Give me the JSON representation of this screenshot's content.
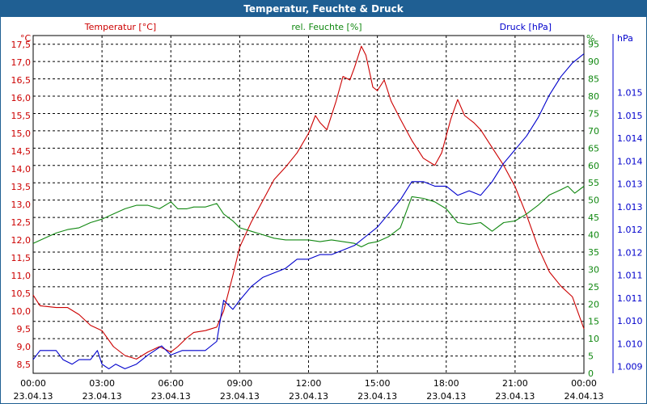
{
  "window": {
    "title": "Temperatur, Feuchte & Druck"
  },
  "colors": {
    "temperature": "#cc0000",
    "humidity": "#118811",
    "pressure": "#0000cc",
    "grid": "#000000",
    "titlebar": "#1f5f93"
  },
  "chart_data": {
    "type": "line",
    "title": "Temperatur, Feuchte & Druck",
    "x_hours": [
      0,
      24
    ],
    "x_ticks": [
      {
        "time": "00:00",
        "date": "23.04.13"
      },
      {
        "time": "03:00",
        "date": "23.04.13"
      },
      {
        "time": "06:00",
        "date": "23.04.13"
      },
      {
        "time": "09:00",
        "date": "23.04.13"
      },
      {
        "time": "12:00",
        "date": "23.04.13"
      },
      {
        "time": "15:00",
        "date": "23.04.13"
      },
      {
        "time": "18:00",
        "date": "23.04.13"
      },
      {
        "time": "21:00",
        "date": "23.04.13"
      },
      {
        "time": "00:00",
        "date": "24.04.13"
      }
    ],
    "axes": {
      "temperature": {
        "label": "Temperatur [°C]",
        "unit": "°C",
        "ylim": [
          8.25,
          17.75
        ],
        "ticks": [
          "8,5",
          "9,0",
          "9,5",
          "10,0",
          "10,5",
          "11,0",
          "11,5",
          "12,0",
          "12,5",
          "13,0",
          "13,5",
          "14,0",
          "14,5",
          "15,0",
          "15,5",
          "16,0",
          "16,5",
          "17,0",
          "17,5"
        ]
      },
      "humidity": {
        "label": "rel. Feuchte [%]",
        "unit": "%",
        "ylim": [
          0,
          97.5
        ],
        "ticks": [
          "0",
          "5",
          "10",
          "15",
          "20",
          "25",
          "30",
          "35",
          "40",
          "45",
          "50",
          "55",
          "60",
          "65",
          "70",
          "75",
          "80",
          "85",
          "90",
          "95"
        ]
      },
      "pressure": {
        "label": "Druck [hPa]",
        "unit": "hPa",
        "ylim": [
          1008.85,
          1016.25
        ],
        "ticks": [
          "1.009",
          "1.010",
          "1.010",
          "1.011",
          "1.011",
          "1.012",
          "1.012",
          "1.013",
          "1.013",
          "1.014",
          "1.014",
          "1.015",
          "1.015"
        ]
      }
    },
    "series": [
      {
        "name": "Temperatur [°C]",
        "axis": "temperature",
        "points": [
          [
            0,
            10.45
          ],
          [
            0.3,
            10.15
          ],
          [
            1,
            10.1
          ],
          [
            1.5,
            10.1
          ],
          [
            2,
            9.9
          ],
          [
            2.5,
            9.6
          ],
          [
            3,
            9.45
          ],
          [
            3.5,
            9.0
          ],
          [
            4,
            8.75
          ],
          [
            4.5,
            8.65
          ],
          [
            5,
            8.85
          ],
          [
            5.5,
            9.0
          ],
          [
            6,
            8.85
          ],
          [
            6.3,
            9.0
          ],
          [
            6.7,
            9.25
          ],
          [
            7,
            9.4
          ],
          [
            7.5,
            9.45
          ],
          [
            8,
            9.55
          ],
          [
            8.3,
            10.0
          ],
          [
            8.7,
            11.0
          ],
          [
            9,
            11.8
          ],
          [
            9.5,
            12.5
          ],
          [
            10,
            13.1
          ],
          [
            10.5,
            13.7
          ],
          [
            11,
            14.05
          ],
          [
            11.5,
            14.45
          ],
          [
            12,
            15.0
          ],
          [
            12.3,
            15.5
          ],
          [
            12.5,
            15.3
          ],
          [
            12.8,
            15.1
          ],
          [
            13.2,
            15.9
          ],
          [
            13.5,
            16.6
          ],
          [
            13.8,
            16.5
          ],
          [
            14,
            16.85
          ],
          [
            14.3,
            17.45
          ],
          [
            14.5,
            17.2
          ],
          [
            14.8,
            16.3
          ],
          [
            15,
            16.2
          ],
          [
            15.3,
            16.5
          ],
          [
            15.6,
            15.9
          ],
          [
            16,
            15.4
          ],
          [
            16.5,
            14.8
          ],
          [
            17,
            14.3
          ],
          [
            17.5,
            14.1
          ],
          [
            17.8,
            14.45
          ],
          [
            18.2,
            15.4
          ],
          [
            18.5,
            15.95
          ],
          [
            18.8,
            15.5
          ],
          [
            19.2,
            15.3
          ],
          [
            19.5,
            15.1
          ],
          [
            19.8,
            14.8
          ],
          [
            20.5,
            14.1
          ],
          [
            21,
            13.5
          ],
          [
            21.5,
            12.7
          ],
          [
            22,
            11.8
          ],
          [
            22.5,
            11.1
          ],
          [
            23,
            10.7
          ],
          [
            23.5,
            10.4
          ],
          [
            24,
            9.5
          ]
        ]
      },
      {
        "name": "rel. Feuchte [%]",
        "axis": "humidity",
        "points": [
          [
            0,
            37.5
          ],
          [
            0.5,
            39
          ],
          [
            1,
            40.5
          ],
          [
            1.5,
            41.5
          ],
          [
            2,
            42
          ],
          [
            2.5,
            43.5
          ],
          [
            3,
            44.5
          ],
          [
            3.5,
            46
          ],
          [
            4,
            47.5
          ],
          [
            4.5,
            48.5
          ],
          [
            5,
            48.5
          ],
          [
            5.5,
            47.5
          ],
          [
            6,
            49.5
          ],
          [
            6.3,
            47.5
          ],
          [
            6.7,
            47.5
          ],
          [
            7,
            48
          ],
          [
            7.5,
            48
          ],
          [
            8,
            49
          ],
          [
            8.3,
            46
          ],
          [
            8.7,
            44
          ],
          [
            9,
            42
          ],
          [
            9.5,
            41
          ],
          [
            10,
            40
          ],
          [
            10.5,
            39
          ],
          [
            11,
            38.5
          ],
          [
            11.5,
            38.5
          ],
          [
            12,
            38.5
          ],
          [
            12.5,
            38
          ],
          [
            13,
            38.5
          ],
          [
            13.5,
            38
          ],
          [
            14,
            37.5
          ],
          [
            14.3,
            36.5
          ],
          [
            14.6,
            37.5
          ],
          [
            15,
            38
          ],
          [
            15.5,
            39.5
          ],
          [
            16,
            42
          ],
          [
            16.5,
            51
          ],
          [
            17,
            50.5
          ],
          [
            17.5,
            49.5
          ],
          [
            18,
            47.5
          ],
          [
            18.5,
            43.5
          ],
          [
            19,
            43
          ],
          [
            19.5,
            43.5
          ],
          [
            20,
            41
          ],
          [
            20.5,
            43.5
          ],
          [
            21,
            44
          ],
          [
            21.5,
            46
          ],
          [
            22,
            48.5
          ],
          [
            22.5,
            51.5
          ],
          [
            23,
            53
          ],
          [
            23.3,
            54
          ],
          [
            23.6,
            52
          ],
          [
            24,
            54
          ]
        ]
      },
      {
        "name": "Druck [hPa]",
        "axis": "pressure",
        "points": [
          [
            0,
            1009.15
          ],
          [
            0.3,
            1009.35
          ],
          [
            1,
            1009.35
          ],
          [
            1.3,
            1009.15
          ],
          [
            1.7,
            1009.05
          ],
          [
            2,
            1009.15
          ],
          [
            2.5,
            1009.15
          ],
          [
            2.8,
            1009.35
          ],
          [
            3,
            1009.05
          ],
          [
            3.3,
            1008.95
          ],
          [
            3.6,
            1009.05
          ],
          [
            4,
            1008.95
          ],
          [
            4.5,
            1009.05
          ],
          [
            5,
            1009.25
          ],
          [
            5.3,
            1009.35
          ],
          [
            5.6,
            1009.45
          ],
          [
            6,
            1009.25
          ],
          [
            6.5,
            1009.35
          ],
          [
            7,
            1009.35
          ],
          [
            7.5,
            1009.35
          ],
          [
            8,
            1009.55
          ],
          [
            8.3,
            1010.45
          ],
          [
            8.7,
            1010.25
          ],
          [
            9,
            1010.45
          ],
          [
            9.5,
            1010.75
          ],
          [
            10,
            1010.95
          ],
          [
            10.5,
            1011.05
          ],
          [
            11,
            1011.15
          ],
          [
            11.5,
            1011.35
          ],
          [
            12,
            1011.35
          ],
          [
            12.5,
            1011.45
          ],
          [
            13,
            1011.45
          ],
          [
            13.5,
            1011.55
          ],
          [
            14,
            1011.65
          ],
          [
            14.5,
            1011.85
          ],
          [
            15,
            1012.05
          ],
          [
            15.5,
            1012.35
          ],
          [
            16,
            1012.65
          ],
          [
            16.5,
            1013.05
          ],
          [
            17,
            1013.05
          ],
          [
            17.5,
            1012.95
          ],
          [
            18,
            1012.95
          ],
          [
            18.5,
            1012.75
          ],
          [
            19,
            1012.85
          ],
          [
            19.5,
            1012.75
          ],
          [
            20,
            1013.05
          ],
          [
            20.5,
            1013.45
          ],
          [
            21,
            1013.75
          ],
          [
            21.5,
            1014.05
          ],
          [
            22,
            1014.45
          ],
          [
            22.5,
            1014.95
          ],
          [
            23,
            1015.35
          ],
          [
            23.5,
            1015.65
          ],
          [
            24,
            1015.85
          ]
        ]
      }
    ]
  }
}
